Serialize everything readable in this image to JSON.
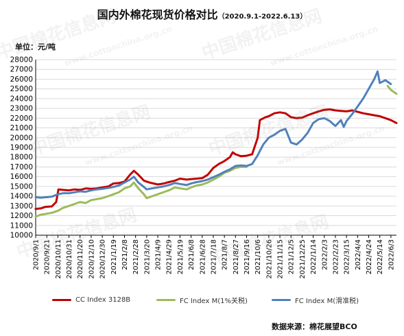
{
  "title": "国内外棉花现货价格对比",
  "subtitle": "（2020.9.1-2022.6.13）",
  "unit_label": "单位：元/吨",
  "source_label": "数据来源：棉花展望BCO",
  "watermark": {
    "cn": "中国棉花信息网",
    "en": "www.cottonchina.org.cn"
  },
  "colors": {
    "cc": "#c00000",
    "fc1": "#9bbb59",
    "fcs": "#4f81bd",
    "grid": "#d9d9d9",
    "axis": "#000000"
  },
  "chart_data": {
    "type": "line",
    "title": "国内外棉花现货价格对比",
    "xlabel": "",
    "ylabel": "单位：元/吨",
    "ylim": [
      10000,
      28000
    ],
    "ytick_step": 1000,
    "grid": true,
    "legend_position": "bottom",
    "x_ticks": [
      "2020/9/1",
      "2020/9/21",
      "2020/10/11",
      "2020/10/31",
      "2020/11/20",
      "2020/12/10",
      "2020/12/30",
      "2021/1/19",
      "2021/2/8",
      "2021/2/28",
      "2021/3/20",
      "2021/4/9",
      "2021/4/29",
      "2021/5/19",
      "2021/6/8",
      "2021/6/28",
      "2021/7/18",
      "2021/8/7",
      "2021/8/27",
      "2021/9/16",
      "2021/10/6",
      "2021/10/26",
      "2021/11/15",
      "2021/12/5",
      "2021/12/25",
      "2022/1/14",
      "2022/2/3",
      "2022/2/23",
      "2022/3/15",
      "2022/4/4",
      "2022/4/24",
      "2022/5/14",
      "2022/6/3"
    ],
    "series": [
      {
        "name": "CC Index 3128B",
        "key": "cc",
        "points": [
          [
            "2020/9/1",
            12700
          ],
          [
            "2020/9/10",
            12750
          ],
          [
            "2020/9/18",
            12900
          ],
          [
            "2020/9/30",
            12950
          ],
          [
            "2020/10/8",
            13400
          ],
          [
            "2020/10/12",
            14700
          ],
          [
            "2020/10/20",
            14650
          ],
          [
            "2020/10/31",
            14600
          ],
          [
            "2020/11/10",
            14700
          ],
          [
            "2020/11/20",
            14650
          ],
          [
            "2020/12/1",
            14800
          ],
          [
            "2020/12/10",
            14750
          ],
          [
            "2020/12/20",
            14800
          ],
          [
            "2020/12/30",
            14900
          ],
          [
            "2021/1/10",
            15000
          ],
          [
            "2021/1/19",
            15300
          ],
          [
            "2021/1/29",
            15350
          ],
          [
            "2021/2/8",
            15500
          ],
          [
            "2021/2/18",
            16200
          ],
          [
            "2021/2/25",
            16600
          ],
          [
            "2021/3/5",
            16200
          ],
          [
            "2021/3/15",
            15600
          ],
          [
            "2021/3/25",
            15400
          ],
          [
            "2021/4/9",
            15200
          ],
          [
            "2021/4/20",
            15300
          ],
          [
            "2021/4/29",
            15450
          ],
          [
            "2021/5/10",
            15600
          ],
          [
            "2021/5/19",
            15800
          ],
          [
            "2021/5/31",
            15700
          ],
          [
            "2021/6/8",
            15750
          ],
          [
            "2021/6/18",
            15800
          ],
          [
            "2021/6/28",
            15850
          ],
          [
            "2021/7/8",
            16200
          ],
          [
            "2021/7/18",
            16900
          ],
          [
            "2021/7/28",
            17300
          ],
          [
            "2021/8/7",
            17600
          ],
          [
            "2021/8/17",
            18000
          ],
          [
            "2021/8/22",
            18500
          ],
          [
            "2021/8/27",
            18300
          ],
          [
            "2021/9/6",
            18100
          ],
          [
            "2021/9/16",
            18150
          ],
          [
            "2021/9/26",
            18300
          ],
          [
            "2021/10/6",
            20000
          ],
          [
            "2021/10/10",
            21800
          ],
          [
            "2021/10/20",
            22100
          ],
          [
            "2021/10/26",
            22200
          ],
          [
            "2021/11/5",
            22500
          ],
          [
            "2021/11/15",
            22600
          ],
          [
            "2021/11/25",
            22500
          ],
          [
            "2021/12/5",
            22100
          ],
          [
            "2021/12/15",
            22000
          ],
          [
            "2021/12/25",
            22050
          ],
          [
            "2022/1/4",
            22300
          ],
          [
            "2022/1/14",
            22500
          ],
          [
            "2022/1/24",
            22700
          ],
          [
            "2022/2/3",
            22850
          ],
          [
            "2022/2/13",
            22900
          ],
          [
            "2022/2/23",
            22800
          ],
          [
            "2022/3/5",
            22750
          ],
          [
            "2022/3/15",
            22700
          ],
          [
            "2022/3/25",
            22800
          ],
          [
            "2022/4/4",
            22650
          ],
          [
            "2022/4/14",
            22500
          ],
          [
            "2022/4/24",
            22400
          ],
          [
            "2022/5/4",
            22300
          ],
          [
            "2022/5/14",
            22200
          ],
          [
            "2022/5/24",
            22000
          ],
          [
            "2022/6/3",
            21800
          ],
          [
            "2022/6/13",
            21500
          ]
        ]
      },
      {
        "name": "FC Index M(1%关税)",
        "key": "fc1",
        "points": [
          [
            "2020/9/1",
            11900
          ],
          [
            "2020/9/10",
            12100
          ],
          [
            "2020/9/21",
            12200
          ],
          [
            "2020/9/30",
            12300
          ],
          [
            "2020/10/11",
            12500
          ],
          [
            "2020/10/20",
            12800
          ],
          [
            "2020/10/31",
            13000
          ],
          [
            "2020/11/10",
            13200
          ],
          [
            "2020/11/20",
            13400
          ],
          [
            "2020/11/30",
            13300
          ],
          [
            "2020/12/10",
            13600
          ],
          [
            "2020/12/20",
            13700
          ],
          [
            "2020/12/30",
            13800
          ],
          [
            "2021/1/10",
            14000
          ],
          [
            "2021/1/19",
            14200
          ],
          [
            "2021/1/29",
            14400
          ],
          [
            "2021/2/8",
            14800
          ],
          [
            "2021/2/18",
            15000
          ],
          [
            "2021/2/25",
            15400
          ],
          [
            "2021/3/5",
            14800
          ],
          [
            "2021/3/15",
            14200
          ],
          [
            "2021/3/20",
            13800
          ],
          [
            "2021/3/30",
            14000
          ],
          [
            "2021/4/9",
            14200
          ],
          [
            "2021/4/19",
            14400
          ],
          [
            "2021/4/29",
            14600
          ],
          [
            "2021/5/10",
            14900
          ],
          [
            "2021/5/19",
            14800
          ],
          [
            "2021/5/31",
            14700
          ],
          [
            "2021/6/8",
            14900
          ],
          [
            "2021/6/18",
            15100
          ],
          [
            "2021/6/28",
            15200
          ],
          [
            "2021/7/8",
            15400
          ],
          [
            "2021/7/18",
            15700
          ],
          [
            "2021/7/28",
            16000
          ],
          [
            "2021/8/7",
            16400
          ],
          [
            "2021/8/17",
            16600
          ],
          [
            "2021/8/27",
            16900
          ],
          [
            "2021/9/6",
            17000
          ],
          [
            "2021/9/16",
            17000
          ]
        ]
      },
      {
        "name": "FC Index M(滑准税)",
        "key": "fcs",
        "points": [
          [
            "2020/9/1",
            13900
          ],
          [
            "2020/9/10",
            13850
          ],
          [
            "2020/9/21",
            13900
          ],
          [
            "2020/9/30",
            13950
          ],
          [
            "2020/10/11",
            14200
          ],
          [
            "2020/10/20",
            14300
          ],
          [
            "2020/10/31",
            14300
          ],
          [
            "2020/11/10",
            14400
          ],
          [
            "2020/11/20",
            14500
          ],
          [
            "2020/11/30",
            14450
          ],
          [
            "2020/12/10",
            14600
          ],
          [
            "2020/12/20",
            14700
          ],
          [
            "2020/12/30",
            14750
          ],
          [
            "2021/1/10",
            14850
          ],
          [
            "2021/1/19",
            14950
          ],
          [
            "2021/1/29",
            15100
          ],
          [
            "2021/2/8",
            15400
          ],
          [
            "2021/2/18",
            15700
          ],
          [
            "2021/2/25",
            16000
          ],
          [
            "2021/3/5",
            15400
          ],
          [
            "2021/3/15",
            14950
          ],
          [
            "2021/3/20",
            14700
          ],
          [
            "2021/3/30",
            14800
          ],
          [
            "2021/4/9",
            14900
          ],
          [
            "2021/4/19",
            15000
          ],
          [
            "2021/4/29",
            15150
          ],
          [
            "2021/5/10",
            15350
          ],
          [
            "2021/5/19",
            15250
          ],
          [
            "2021/5/31",
            15150
          ],
          [
            "2021/6/8",
            15300
          ],
          [
            "2021/6/18",
            15450
          ],
          [
            "2021/6/28",
            15550
          ],
          [
            "2021/7/8",
            15700
          ],
          [
            "2021/7/18",
            15950
          ],
          [
            "2021/7/28",
            16200
          ],
          [
            "2021/8/7",
            16500
          ],
          [
            "2021/8/17",
            16750
          ],
          [
            "2021/8/27",
            17100
          ],
          [
            "2021/9/6",
            17150
          ],
          [
            "2021/9/16",
            17100
          ],
          [
            "2021/9/26",
            17300
          ],
          [
            "2021/10/6",
            18200
          ],
          [
            "2021/10/16",
            19300
          ],
          [
            "2021/10/26",
            20000
          ],
          [
            "2021/11/5",
            20300
          ],
          [
            "2021/11/15",
            20700
          ],
          [
            "2021/11/25",
            20900
          ],
          [
            "2021/12/5",
            19500
          ],
          [
            "2021/12/15",
            19300
          ],
          [
            "2021/12/25",
            19800
          ],
          [
            "2022/1/4",
            20500
          ],
          [
            "2022/1/14",
            21500
          ],
          [
            "2022/1/24",
            21900
          ],
          [
            "2022/2/3",
            22000
          ],
          [
            "2022/2/13",
            21700
          ],
          [
            "2022/2/23",
            21200
          ],
          [
            "2022/3/5",
            21800
          ],
          [
            "2022/3/10",
            21100
          ],
          [
            "2022/3/15",
            21700
          ],
          [
            "2022/3/25",
            22400
          ],
          [
            "2022/4/4",
            23200
          ],
          [
            "2022/4/14",
            24000
          ],
          [
            "2022/4/24",
            25000
          ],
          [
            "2022/5/4",
            26000
          ],
          [
            "2022/5/10",
            26800
          ],
          [
            "2022/5/14",
            25600
          ],
          [
            "2022/5/24",
            25900
          ],
          [
            "2022/6/3",
            25500
          ]
        ]
      },
      {
        "name": "FC Index M(1%关税) 2022",
        "key": "fc1b",
        "points": [
          [
            "2022/5/28",
            25300
          ],
          [
            "2022/6/3",
            24900
          ],
          [
            "2022/6/13",
            24500
          ]
        ]
      }
    ]
  },
  "legend": [
    {
      "label": "CC Index 3128B",
      "color_key": "cc"
    },
    {
      "label": "FC Index M(1%关税)",
      "color_key": "fc1"
    },
    {
      "label": "FC Index M(滑准税)",
      "color_key": "fcs"
    }
  ]
}
